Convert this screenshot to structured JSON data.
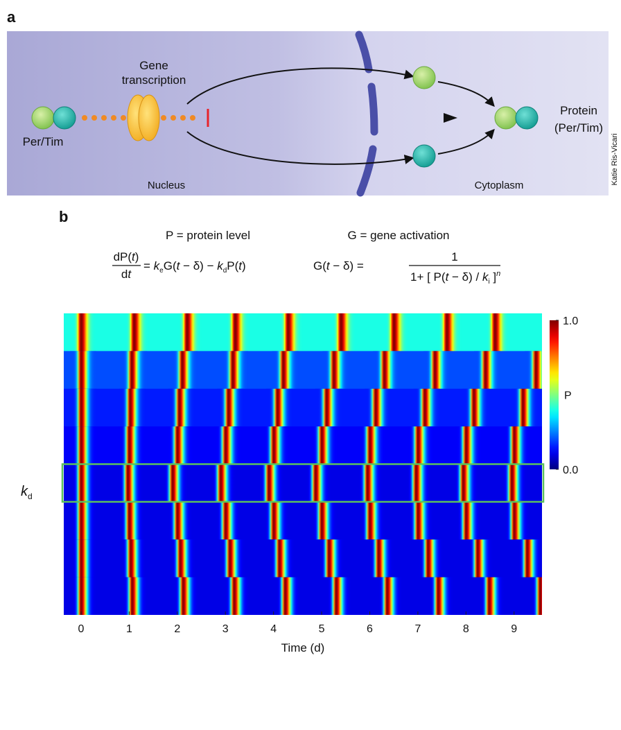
{
  "panel_a": {
    "label": "a",
    "gene_label": [
      "Gene",
      "transcription"
    ],
    "left_complex": "Per/Tim",
    "protein_label": [
      "Protein",
      "(Per/Tim)"
    ],
    "nucleus": "Nucleus",
    "cytoplasm": "Cytoplasm",
    "credit": "Katie Ris-Vicari"
  },
  "panel_b": {
    "label": "b",
    "definitions": [
      "P = protein level",
      "G = gene activation"
    ],
    "eq1": {
      "numerator": [
        "dP(",
        "t",
        ")"
      ],
      "denominator": [
        "d",
        "t"
      ],
      "rhs": [
        "= ",
        "k",
        "e",
        "G(",
        "t",
        " − δ) − ",
        "k",
        "d",
        "P(",
        "t",
        ")"
      ]
    },
    "eq2": {
      "lhs": [
        "G(",
        "t",
        " − δ) ="
      ],
      "numerator": "1",
      "denominator": [
        "1+ [ P(",
        "t",
        " − δ) / ",
        "k",
        "i",
        " ]",
        "n"
      ]
    },
    "ylabel": [
      "k",
      "d"
    ]
  },
  "chart_data": {
    "type": "heatmap",
    "xlabel": "Time (d)",
    "xlim": [
      -0.36,
      9.58
    ],
    "xticks": [
      0,
      1,
      2,
      3,
      4,
      5,
      6,
      7,
      8,
      9
    ],
    "rows": [
      {
        "baseline": 0.4,
        "peaks": [
          0.0,
          1.1,
          2.2,
          3.2,
          4.3,
          5.4,
          6.5,
          7.6,
          8.6
        ]
      },
      {
        "baseline": 0.2,
        "peaks": [
          0.0,
          1.05,
          2.1,
          3.15,
          4.2,
          5.25,
          6.3,
          7.35,
          8.4,
          9.45
        ]
      },
      {
        "baseline": 0.15,
        "peaks": [
          0.0,
          1.02,
          2.04,
          3.06,
          4.08,
          5.1,
          6.12,
          7.14,
          8.16,
          9.18
        ]
      },
      {
        "baseline": 0.12,
        "peaks": [
          0.0,
          1.0,
          2.0,
          3.0,
          4.0,
          5.0,
          6.0,
          7.0,
          8.0,
          9.0
        ]
      },
      {
        "baseline": 0.1,
        "peaks": [
          0.0,
          0.97,
          1.9,
          2.9,
          3.9,
          4.87,
          5.95,
          6.96,
          7.94,
          8.95
        ]
      },
      {
        "baseline": 0.1,
        "peaks": [
          0.0,
          1.0,
          2.0,
          3.0,
          4.0,
          5.0,
          6.0,
          7.0,
          8.0,
          9.0
        ]
      },
      {
        "baseline": 0.1,
        "peaks": [
          0.0,
          1.03,
          2.06,
          3.09,
          4.12,
          5.15,
          6.18,
          7.21,
          8.24,
          9.27
        ]
      },
      {
        "baseline": 0.1,
        "peaks": [
          0.0,
          1.06,
          2.12,
          3.18,
          4.24,
          5.3,
          6.36,
          7.42,
          8.48,
          9.54
        ]
      }
    ],
    "highlight_row": 4,
    "highlight_color": "#5cc25c",
    "colorbar": {
      "label": "P",
      "clim": [
        0,
        1
      ],
      "ticks": [
        {
          "value": 1,
          "label": "1.0"
        },
        {
          "value": 0,
          "label": "0.0"
        }
      ]
    }
  }
}
